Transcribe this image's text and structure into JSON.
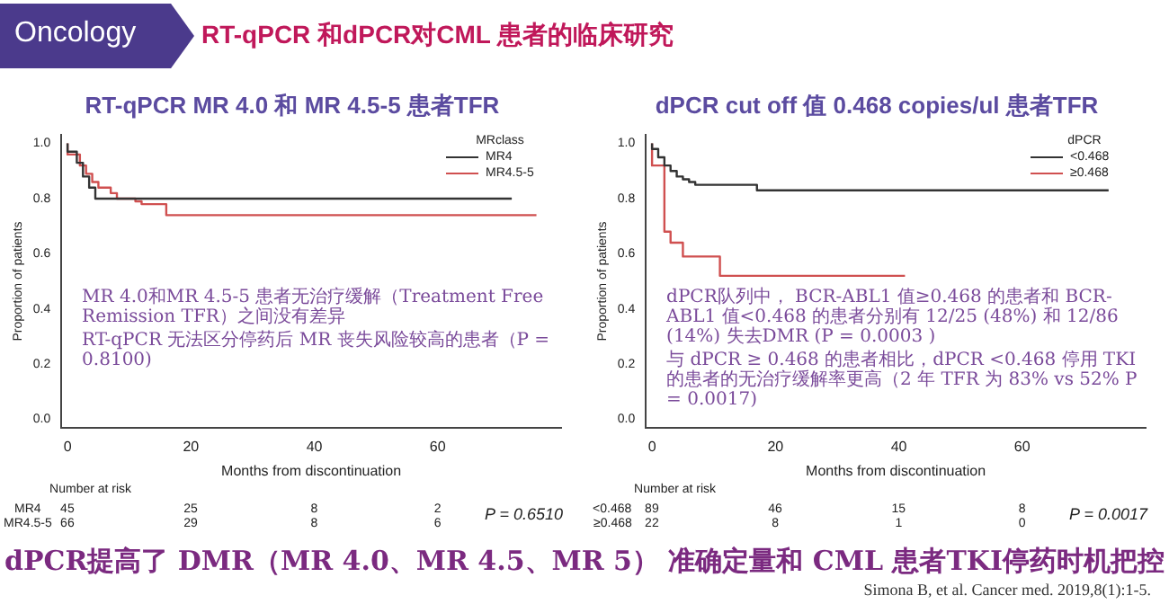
{
  "chart_data": [
    {
      "type": "other",
      "title": "RT-qPCR 和dPCR对CML 患者的临床研究",
      "annotations": [
        "Oncology",
        "dPCR提高了 DMR（MR 4.0、MR 4.5、MR 5） 准确定量和 CML 患者TKI停药时机把控",
        "Simona B, et al. Cancer med. 2019,8(1):1-5."
      ]
    },
    {
      "type": "step",
      "title": "RT-qPCR MR 4.0 和 MR 4.5-5 患者TFR",
      "xlabel": "Months from discontinuation",
      "ylabel": "Proportion of patients",
      "legend_title": "MRclass",
      "legend": "top right",
      "marker": "none",
      "grid": false,
      "xlim": [
        -1,
        80
      ],
      "xticks": [
        0,
        20,
        40,
        60
      ],
      "ylim": [
        -0.03,
        1.03
      ],
      "yticks": [
        {
          "value": 0,
          "label": "0.0"
        },
        {
          "value": 0.2,
          "label": "0.2"
        },
        {
          "value": 0.4,
          "label": "0.4"
        },
        {
          "value": 0.6,
          "label": "0.6"
        },
        {
          "value": 0.8,
          "label": "0.8"
        },
        {
          "value": 1,
          "label": "1.0"
        }
      ],
      "series": [
        {
          "name": "MR4",
          "color": "#333333",
          "x": [
            0,
            1.5,
            2.5,
            3.5,
            4.5,
            5.5,
            72
          ],
          "values": [
            1,
            0.97,
            0.93,
            0.88,
            0.84,
            0.8,
            0.8
          ]
        },
        {
          "name": "MR4.5-5",
          "color": "#d05050",
          "x": [
            0,
            2,
            3,
            4,
            5,
            7,
            8,
            11,
            12,
            16,
            20,
            76
          ],
          "values": [
            1,
            0.96,
            0.92,
            0.89,
            0.86,
            0.84,
            0.82,
            0.8,
            0.79,
            0.78,
            0.74,
            0.74
          ]
        }
      ],
      "annotations": [
        "MR 4.0和MR 4.5-5 患者无治疗缓解（Treatment Free Remission TFR）之间没有差异",
        "RT-qPCR 无法区分停药后 MR 丧失风险较高的患者（P = 0.8100)",
        "Number at risk",
        "MR4",
        "45",
        "25",
        "8",
        "2",
        "MR4.5-5",
        "66",
        "29",
        "8",
        "6",
        "P = 0.6510"
      ]
    },
    {
      "type": "step",
      "title": "dPCR cut off 值 0.468 copies/ul 患者TFR",
      "xlabel": "Months from discontinuation",
      "ylabel": "Proportion of patients",
      "legend_title": "dPCR",
      "legend": "top right",
      "marker": "none",
      "grid": false,
      "xlim": [
        -1,
        80
      ],
      "xticks": [
        0,
        20,
        40,
        60
      ],
      "ylim": [
        -0.03,
        1.03
      ],
      "yticks": [
        {
          "value": 0,
          "label": "0.0"
        },
        {
          "value": 0.2,
          "label": "0.2"
        },
        {
          "value": 0.4,
          "label": "0.4"
        },
        {
          "value": 0.6,
          "label": "0.6"
        },
        {
          "value": 0.8,
          "label": "0.8"
        },
        {
          "value": 1,
          "label": "1.0"
        }
      ],
      "series": [
        {
          "name": "<0.468",
          "color": "#333333",
          "x": [
            0,
            1,
            2,
            3,
            4,
            5,
            6,
            7,
            17,
            18,
            74
          ],
          "values": [
            1,
            0.98,
            0.95,
            0.92,
            0.9,
            0.88,
            0.87,
            0.86,
            0.85,
            0.83,
            0.83
          ]
        },
        {
          "name": "≥0.468",
          "color": "#d05050",
          "x": [
            0,
            2,
            3,
            5,
            11,
            20,
            41
          ],
          "values": [
            1,
            0.92,
            0.68,
            0.64,
            0.59,
            0.52,
            0.52
          ]
        }
      ],
      "annotations": [
        "dPCR队列中， BCR-ABL1 值≥0.468 的患者和 BCR-ABL1 值<0.468 的患者分别有 12/25 (48%) 和 12/86 (14%) 失去DMR (P = 0.0003 )",
        "与 dPCR ≥ 0.468 的患者相比，dPCR <0.468 停用 TKI 的患者的无治疗缓解率更高（2 年 TFR 为 83% vs 52% P = 0.0017)",
        "Number at risk",
        "<0.468",
        "89",
        "46",
        "15",
        "8",
        "≥0.468",
        "22",
        "8",
        "1",
        "0",
        "P = 0.0017"
      ]
    }
  ]
}
